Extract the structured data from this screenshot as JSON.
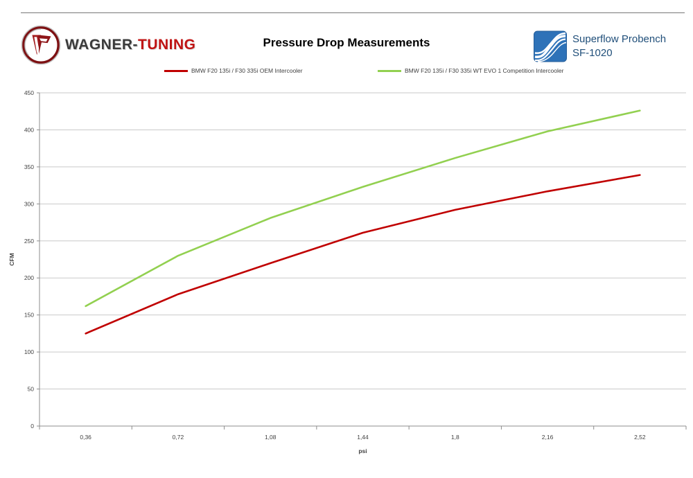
{
  "header": {
    "brand_part1": "WAGNER-",
    "brand_part2": "TUNING",
    "brand_monogram": "WT",
    "title": "Pressure Drop Measurements",
    "bench_line1": "Superflow Probench",
    "bench_line2": "SF-1020"
  },
  "colors": {
    "brand_red": "#c01414",
    "bench_blue": "#1f4e79",
    "bench_logo_blue": "#2e72b8",
    "series_oem_red": "#c00000",
    "series_evo_green": "#92d050",
    "gridline_gray": "#c9c9c9",
    "axis_gray": "#8c8c8c",
    "tick_text_gray": "#3f3f3f"
  },
  "legend": [
    {
      "label": "BMW F20 135i / F30 335i OEM Intercooler",
      "color": "#c00000"
    },
    {
      "label": "BMW F20 135i / F30 335i WT EVO 1 Competition Intercooler",
      "color": "#92d050"
    }
  ],
  "chart_data": {
    "type": "line",
    "title": "Pressure Drop Measurements",
    "xlabel": "psi",
    "ylabel": "CFM",
    "categories": [
      "0,36",
      "0,72",
      "1,08",
      "1,44",
      "1,8",
      "2,16",
      "2,52"
    ],
    "series": [
      {
        "name": "BMW F20 135i / F30 335i OEM Intercooler",
        "color": "#c00000",
        "values": [
          125,
          178,
          220,
          261,
          292,
          317,
          339
        ]
      },
      {
        "name": "BMW F20 135i / F30 335i WT EVO 1 Competition Intercooler",
        "color": "#92d050",
        "values": [
          162,
          230,
          281,
          323,
          362,
          398,
          426
        ]
      }
    ],
    "ylim": [
      0,
      450
    ],
    "ytick_step": 50,
    "yticks": [
      0,
      50,
      100,
      150,
      200,
      250,
      300,
      350,
      400,
      450
    ],
    "grid": "horizontal",
    "legend_position": "top"
  }
}
